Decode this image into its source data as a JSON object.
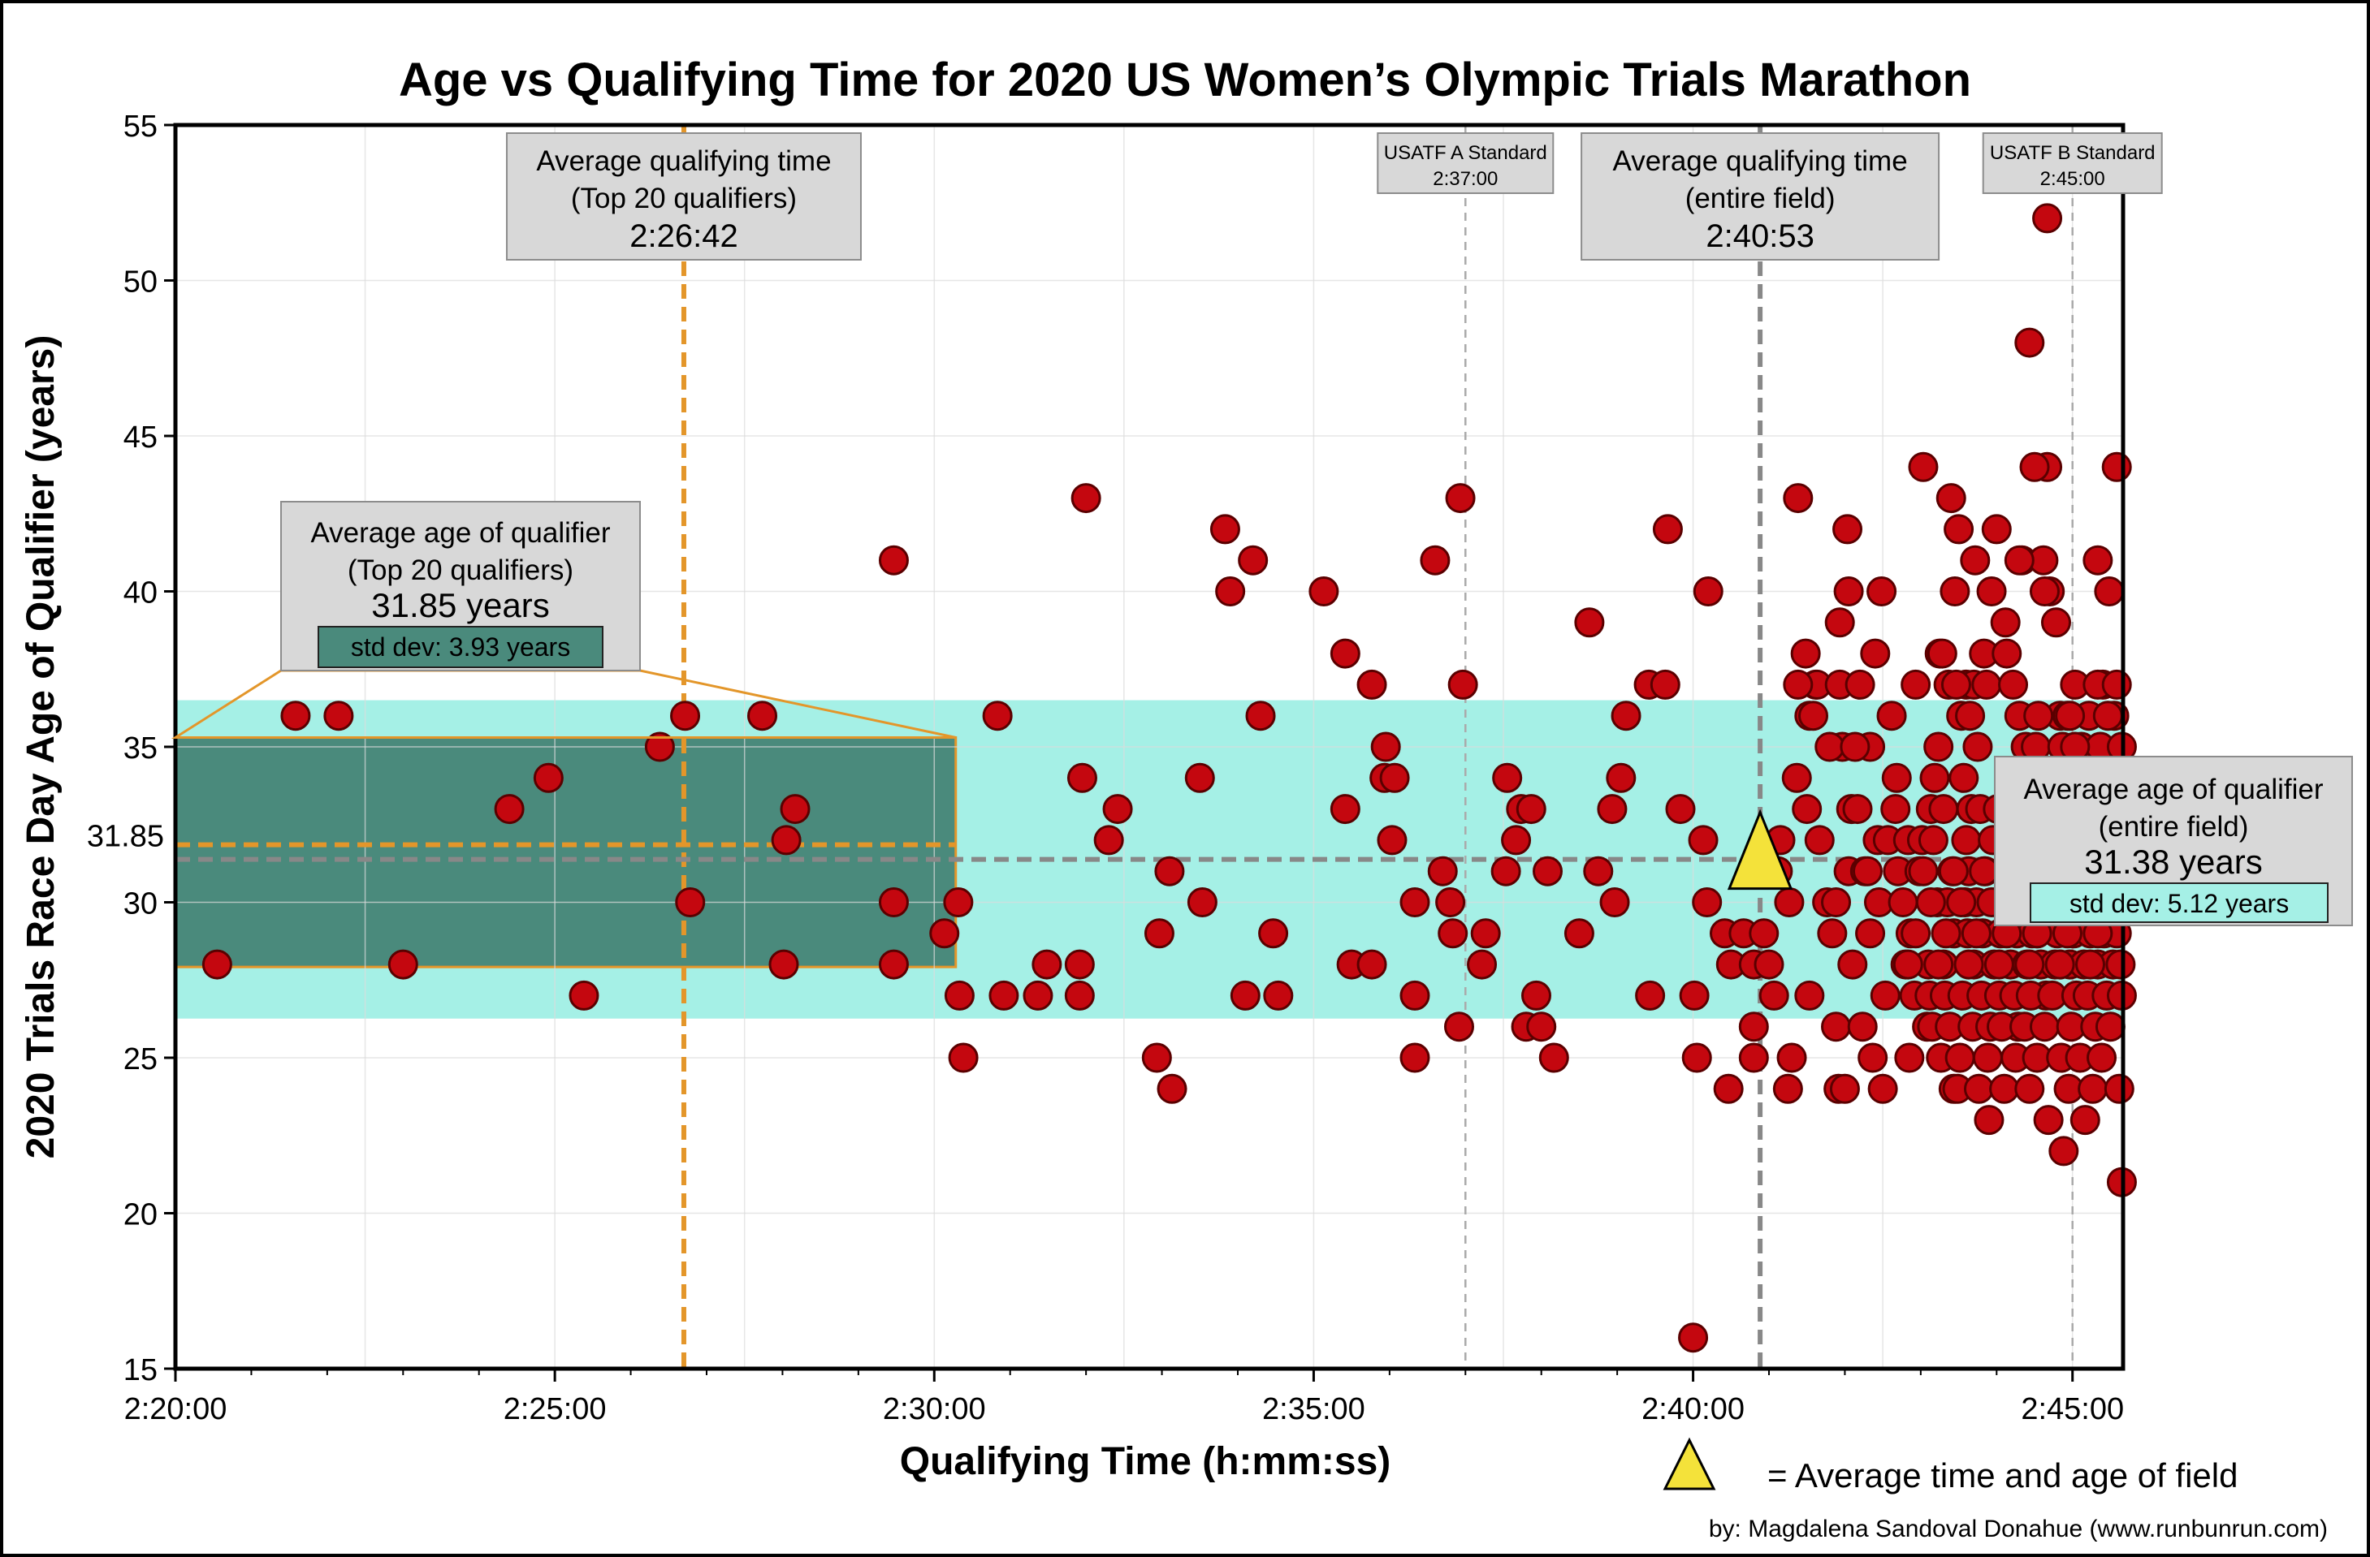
{
  "chart_data": {
    "type": "scatter",
    "title": "Age vs Qualifying Time for 2020 US Women’s Olympic Trials Marathon",
    "xlabel": "Qualifying Time (h:mm:ss)",
    "ylabel": "2020 Trials Race Day Age of Qualifier (years)",
    "xlim_seconds": [
      8400,
      9940
    ],
    "ylim": [
      15,
      55
    ],
    "x_ticks": [
      {
        "value": 8400,
        "label": "2:20:00"
      },
      {
        "value": 8700,
        "label": "2:25:00"
      },
      {
        "value": 9000,
        "label": "2:30:00"
      },
      {
        "value": 9300,
        "label": "2:35:00"
      },
      {
        "value": 9600,
        "label": "2:40:00"
      },
      {
        "value": 9900,
        "label": "2:45:00"
      }
    ],
    "y_ticks": [
      15,
      20,
      25,
      30,
      35,
      40,
      45,
      50,
      55
    ],
    "y_extra_tick": {
      "value": 31.85,
      "label": "31.85"
    },
    "grid": true,
    "bands": [
      {
        "name": "entire-field-age-band",
        "y0": 26.26,
        "y1": 36.5,
        "x0": 8400,
        "x1": 9940,
        "color": "#a5f0e6"
      },
      {
        "name": "top20-age-band",
        "y0": 27.92,
        "y1": 35.3,
        "x0": 8400,
        "x1": 9017,
        "color": "#4a8a7c"
      }
    ],
    "reference_lines": [
      {
        "name": "top20-avg-time-line",
        "axis": "x",
        "value": 8802,
        "color": "#e3962a"
      },
      {
        "name": "field-avg-time-line",
        "axis": "x",
        "value": 9653,
        "color": "#888888"
      },
      {
        "name": "usatf-a-line",
        "axis": "x",
        "value": 9420,
        "color": "#aaaaaa"
      },
      {
        "name": "usatf-b-line",
        "axis": "x",
        "value": 9900,
        "color": "#aaaaaa"
      },
      {
        "name": "top20-avg-age-line",
        "axis": "y",
        "value": 31.85,
        "color": "#e3962a"
      },
      {
        "name": "field-avg-age-line",
        "axis": "y",
        "value": 31.38,
        "color": "#888888"
      }
    ],
    "average_point": {
      "x": 9653,
      "y": 31.38,
      "label": "= Average time and age of field",
      "color": "#f4e23a"
    },
    "annotations": {
      "top20_time": {
        "line1": "Average qualifying time",
        "line2": "(Top 20 qualifiers)",
        "value": "2:26:42"
      },
      "field_time": {
        "line1": "Average qualifying time",
        "line2": "(entire field)",
        "value": "2:40:53"
      },
      "usatf_a": {
        "line1": "USATF A Standard",
        "line2": "2:37:00"
      },
      "usatf_b": {
        "line1": "USATF B Standard",
        "line2": "2:45:00"
      },
      "top20_age": {
        "line1": "Average age of qualifier",
        "line2": "(Top 20 qualifiers)",
        "value": "31.85 years",
        "std": "std dev: 3.93 years"
      },
      "field_age": {
        "line1": "Average age of qualifier",
        "line2": "(entire field)",
        "value": "31.38 years",
        "std": "std dev: 5.12 years"
      }
    },
    "credit": "by: Magdalena Sandoval Donahue (www.runbunrun.com)",
    "points": [
      [
        8433,
        28
      ],
      [
        8495,
        36
      ],
      [
        8529,
        36
      ],
      [
        8580,
        28
      ],
      [
        8664,
        33
      ],
      [
        8695,
        34
      ],
      [
        8723,
        27
      ],
      [
        8783,
        35
      ],
      [
        8803,
        36
      ],
      [
        8807,
        30
      ],
      [
        8864,
        36
      ],
      [
        8881,
        28
      ],
      [
        8883,
        32
      ],
      [
        8890,
        33
      ],
      [
        8968,
        41
      ],
      [
        8968,
        30
      ],
      [
        8968,
        28
      ],
      [
        9008,
        29
      ],
      [
        9019,
        30
      ],
      [
        9020,
        27
      ],
      [
        9023,
        25
      ],
      [
        9050,
        36
      ],
      [
        9055,
        27
      ],
      [
        9082,
        27
      ],
      [
        9089,
        28
      ],
      [
        9120,
        43
      ],
      [
        9117,
        34
      ],
      [
        9115,
        28
      ],
      [
        9115,
        27
      ],
      [
        9138,
        32
      ],
      [
        9145,
        33
      ],
      [
        9176,
        25
      ],
      [
        9178,
        29
      ],
      [
        9186,
        31
      ],
      [
        9188,
        24
      ],
      [
        9212,
        30
      ],
      [
        9210,
        34
      ],
      [
        9234,
        40
      ],
      [
        9230,
        42
      ],
      [
        9252,
        41
      ],
      [
        9246,
        27
      ],
      [
        9258,
        36
      ],
      [
        9268,
        29
      ],
      [
        9272,
        27
      ],
      [
        9308,
        40
      ],
      [
        9325,
        38
      ],
      [
        9325,
        33
      ],
      [
        9330,
        28
      ],
      [
        9346,
        28
      ],
      [
        9346,
        37
      ],
      [
        9357,
        35
      ],
      [
        9356,
        34
      ],
      [
        9364,
        34
      ],
      [
        9362,
        32
      ],
      [
        9380,
        27
      ],
      [
        9380,
        25
      ],
      [
        9380,
        30
      ],
      [
        9396,
        41
      ],
      [
        9402,
        31
      ],
      [
        9408,
        30
      ],
      [
        9410,
        29
      ],
      [
        9416,
        43
      ],
      [
        9418,
        37
      ],
      [
        9415,
        26
      ],
      [
        9433,
        28
      ],
      [
        9436,
        29
      ],
      [
        9452,
        31
      ],
      [
        9453,
        34
      ],
      [
        9460,
        32
      ],
      [
        9464,
        33
      ],
      [
        9468,
        26
      ],
      [
        9472,
        33
      ],
      [
        9476,
        27
      ],
      [
        9480,
        26
      ],
      [
        9485,
        31
      ],
      [
        9490,
        25
      ],
      [
        9510,
        29
      ],
      [
        9518,
        39
      ],
      [
        9525,
        31
      ],
      [
        9536,
        33
      ],
      [
        9538,
        30
      ],
      [
        9543,
        34
      ],
      [
        9547,
        36
      ],
      [
        9566,
        27
      ],
      [
        9565,
        37
      ],
      [
        9578,
        37
      ],
      [
        9580,
        42
      ],
      [
        9590,
        33
      ],
      [
        9601,
        27
      ],
      [
        9603,
        25
      ],
      [
        9608,
        32
      ],
      [
        9611,
        30
      ],
      [
        9612,
        40
      ],
      [
        9625,
        29
      ],
      [
        9628,
        24
      ],
      [
        9640,
        29
      ],
      [
        9648,
        26
      ],
      [
        9648,
        25
      ],
      [
        9656,
        29
      ],
      [
        9664,
        27
      ],
      [
        9675,
        24
      ],
      [
        9678,
        25
      ],
      [
        9683,
        43
      ],
      [
        9682,
        34
      ],
      [
        9692,
        36
      ],
      [
        9697,
        37
      ],
      [
        9698,
        37
      ],
      [
        9715,
        24
      ],
      [
        9716,
        39
      ],
      [
        9718,
        35
      ],
      [
        9723,
        31
      ],
      [
        9725,
        33
      ],
      [
        9740,
        35
      ],
      [
        9747,
        30
      ],
      [
        9761,
        34
      ],
      [
        9788,
        33
      ],
      [
        9771,
        25
      ],
      [
        9785,
        26
      ],
      [
        9798,
        28
      ],
      [
        9802,
        37
      ],
      [
        9806,
        24
      ],
      [
        9816,
        37
      ],
      [
        9822,
        37
      ],
      [
        9857,
        26
      ],
      [
        9872,
        29
      ],
      [
        9879,
        27
      ],
      [
        9890,
        36
      ],
      [
        9906,
        31
      ],
      [
        9913,
        31
      ],
      [
        9600,
        16
      ],
      [
        9630,
        28
      ],
      [
        9648,
        28
      ],
      [
        9660,
        28
      ],
      [
        9667,
        31
      ],
      [
        9669,
        32
      ],
      [
        9676,
        30
      ],
      [
        9683,
        37
      ],
      [
        9689,
        38
      ],
      [
        9690,
        33
      ],
      [
        9692,
        27
      ],
      [
        9695,
        36
      ],
      [
        9700,
        32
      ],
      [
        9706,
        30
      ],
      [
        9708,
        35
      ],
      [
        9710,
        29
      ],
      [
        9713,
        26
      ],
      [
        9713,
        30
      ],
      [
        9716,
        37
      ],
      [
        9720,
        24
      ],
      [
        9722,
        42
      ],
      [
        9723,
        40
      ],
      [
        9726,
        28
      ],
      [
        9728,
        35
      ],
      [
        9730,
        33
      ],
      [
        9732,
        37
      ],
      [
        9734,
        26
      ],
      [
        9736,
        31
      ],
      [
        9738,
        31
      ],
      [
        9740,
        29
      ],
      [
        9742,
        25
      ],
      [
        9744,
        38
      ],
      [
        9746,
        32
      ],
      [
        9749,
        40
      ],
      [
        9750,
        24
      ],
      [
        9752,
        27
      ],
      [
        9754,
        32
      ],
      [
        9757,
        36
      ],
      [
        9760,
        33
      ],
      [
        9762,
        31
      ],
      [
        9766,
        30
      ],
      [
        9768,
        28
      ],
      [
        9770,
        32
      ],
      [
        9772,
        29
      ],
      [
        9775,
        27
      ],
      [
        9776,
        37
      ],
      [
        9779,
        31
      ],
      [
        9781,
        32
      ],
      [
        9782,
        44
      ],
      [
        9786,
        28
      ],
      [
        9787,
        27
      ],
      [
        9789,
        26
      ],
      [
        9790,
        32
      ],
      [
        9791,
        34
      ],
      [
        9793,
        30
      ],
      [
        9794,
        35
      ],
      [
        9795,
        38
      ],
      [
        9796,
        25
      ],
      [
        9797,
        38
      ],
      [
        9798,
        33
      ],
      [
        9799,
        27
      ],
      [
        9801,
        30
      ],
      [
        9803,
        26
      ],
      [
        9804,
        43
      ],
      [
        9805,
        31
      ],
      [
        9806,
        29
      ],
      [
        9807,
        40
      ],
      [
        9808,
        37
      ],
      [
        9809,
        24
      ],
      [
        9810,
        42
      ],
      [
        9811,
        25
      ],
      [
        9812,
        36
      ],
      [
        9813,
        27
      ],
      [
        9814,
        34
      ],
      [
        9815,
        30
      ],
      [
        9816,
        32
      ],
      [
        9817,
        29
      ],
      [
        9818,
        31
      ],
      [
        9819,
        36
      ],
      [
        9820,
        33
      ],
      [
        9821,
        26
      ],
      [
        9822,
        28
      ],
      [
        9823,
        41
      ],
      [
        9824,
        30
      ],
      [
        9825,
        35
      ],
      [
        9826,
        24
      ],
      [
        9827,
        33
      ],
      [
        9828,
        27
      ],
      [
        9829,
        29
      ],
      [
        9830,
        38
      ],
      [
        9831,
        31
      ],
      [
        9832,
        37
      ],
      [
        9833,
        25
      ],
      [
        9834,
        23
      ],
      [
        9835,
        26
      ],
      [
        9836,
        40
      ],
      [
        9837,
        32
      ],
      [
        9838,
        28
      ],
      [
        9839,
        30
      ],
      [
        9840,
        42
      ],
      [
        9841,
        33
      ],
      [
        9842,
        27
      ],
      [
        9843,
        29
      ],
      [
        9844,
        26
      ],
      [
        9845,
        31
      ],
      [
        9846,
        24
      ],
      [
        9847,
        39
      ],
      [
        9848,
        38
      ],
      [
        9849,
        30
      ],
      [
        9850,
        32
      ],
      [
        9851,
        28
      ],
      [
        9852,
        33
      ],
      [
        9853,
        37
      ],
      [
        9854,
        27
      ],
      [
        9855,
        25
      ],
      [
        9856,
        29
      ],
      [
        9857,
        31
      ],
      [
        9858,
        36
      ],
      [
        9859,
        34
      ],
      [
        9860,
        41
      ],
      [
        9861,
        30
      ],
      [
        9862,
        26
      ],
      [
        9863,
        35
      ],
      [
        9864,
        28
      ],
      [
        9865,
        32
      ],
      [
        9866,
        24
      ],
      [
        9867,
        27
      ],
      [
        9868,
        29
      ],
      [
        9869,
        31
      ],
      [
        9870,
        34
      ],
      [
        9871,
        35
      ],
      [
        9872,
        25
      ],
      [
        9873,
        36
      ],
      [
        9874,
        30
      ],
      [
        9875,
        28
      ],
      [
        9876,
        33
      ],
      [
        9877,
        41
      ],
      [
        9878,
        26
      ],
      [
        9879,
        31
      ],
      [
        9880,
        44
      ],
      [
        9881,
        23
      ],
      [
        9882,
        40
      ],
      [
        9883,
        30
      ],
      [
        9884,
        27
      ],
      [
        9885,
        32
      ],
      [
        9886,
        28
      ],
      [
        9887,
        39
      ],
      [
        9888,
        29
      ],
      [
        9889,
        34
      ],
      [
        9890,
        31
      ],
      [
        9891,
        25
      ],
      [
        9892,
        35
      ],
      [
        9893,
        22
      ],
      [
        9894,
        33
      ],
      [
        9895,
        30
      ],
      [
        9896,
        36
      ],
      [
        9897,
        24
      ],
      [
        9898,
        28
      ],
      [
        9899,
        26
      ],
      [
        9900,
        32
      ],
      [
        9901,
        29
      ],
      [
        9902,
        37
      ],
      [
        9903,
        27
      ],
      [
        9904,
        31
      ],
      [
        9905,
        34
      ],
      [
        9906,
        25
      ],
      [
        9907,
        35
      ],
      [
        9908,
        30
      ],
      [
        9909,
        28
      ],
      [
        9910,
        23
      ],
      [
        9911,
        33
      ],
      [
        9912,
        27
      ],
      [
        9913,
        36
      ],
      [
        9914,
        29
      ],
      [
        9915,
        31
      ],
      [
        9916,
        24
      ],
      [
        9917,
        32
      ],
      [
        9918,
        26
      ],
      [
        9919,
        34
      ],
      [
        9920,
        28
      ],
      [
        9921,
        30
      ],
      [
        9922,
        35
      ],
      [
        9923,
        25
      ],
      [
        9924,
        37
      ],
      [
        9925,
        29
      ],
      [
        9926,
        31
      ],
      [
        9927,
        27
      ],
      [
        9928,
        33
      ],
      [
        9929,
        30
      ],
      [
        9930,
        26
      ],
      [
        9931,
        32
      ],
      [
        9932,
        28
      ],
      [
        9933,
        36
      ],
      [
        9934,
        31
      ],
      [
        9935,
        29
      ],
      [
        9936,
        34
      ],
      [
        9937,
        24
      ],
      [
        9938,
        30
      ],
      [
        9939,
        27
      ],
      [
        9939,
        21
      ],
      [
        9770,
        28
      ],
      [
        9776,
        29
      ],
      [
        9782,
        31
      ],
      [
        9788,
        30
      ],
      [
        9794,
        28
      ],
      [
        9800,
        29
      ],
      [
        9806,
        31
      ],
      [
        9812,
        30
      ],
      [
        9818,
        28
      ],
      [
        9824,
        29
      ],
      [
        9830,
        31
      ],
      [
        9836,
        30
      ],
      [
        9842,
        28
      ],
      [
        9848,
        29
      ],
      [
        9854,
        31
      ],
      [
        9860,
        30
      ],
      [
        9866,
        28
      ],
      [
        9872,
        29
      ],
      [
        9878,
        31
      ],
      [
        9884,
        30
      ],
      [
        9890,
        28
      ],
      [
        9896,
        29
      ],
      [
        9902,
        31
      ],
      [
        9908,
        30
      ],
      [
        9914,
        28
      ],
      [
        9920,
        29
      ],
      [
        9926,
        31
      ],
      [
        9932,
        30
      ],
      [
        9938,
        28
      ],
      [
        9880,
        52
      ],
      [
        9866,
        48
      ],
      [
        9870,
        44
      ],
      [
        9935,
        44
      ],
      [
        9858,
        41
      ],
      [
        9878,
        40
      ],
      [
        9929,
        40
      ],
      [
        9920,
        41
      ],
      [
        9920,
        37
      ],
      [
        9935,
        37
      ],
      [
        9898,
        36
      ],
      [
        9902,
        35
      ],
      [
        9928,
        36
      ],
      [
        9926,
        32
      ],
      [
        9935,
        34
      ],
      [
        9939,
        35
      ]
    ]
  }
}
